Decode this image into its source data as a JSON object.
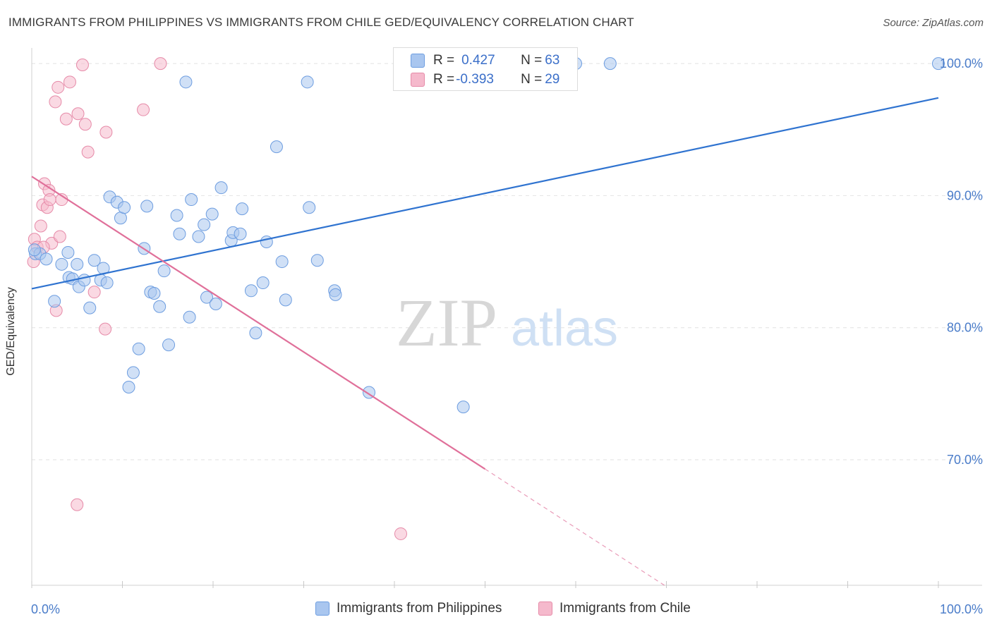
{
  "title": "IMMIGRANTS FROM PHILIPPINES VS IMMIGRANTS FROM CHILE GED/EQUIVALENCY CORRELATION CHART",
  "source": "Source: ZipAtlas.com",
  "watermark": {
    "zip": "ZIP",
    "atlas": "atlas"
  },
  "stats_box": {
    "rows": [
      {
        "r_label": "R = ",
        "r_value": "0.427",
        "n_label": "N = ",
        "n_value": "63",
        "color": "#a9c6ef"
      },
      {
        "r_label": "R = ",
        "r_value": "-0.393",
        "n_label": "N = ",
        "n_value": "29",
        "color": "#f5b9cc"
      }
    ]
  },
  "legend": [
    {
      "label": "Immigrants from Philippines",
      "color": "#a9c6ef"
    },
    {
      "label": "Immigrants from Chile",
      "color": "#f5b9cc"
    }
  ],
  "colors": {
    "philippines_fill": "#a9c6ef",
    "philippines_stroke": "#6d9de0",
    "philippines_line": "#2f73d0",
    "chile_fill": "#f5b9cc",
    "chile_stroke": "#e68aa8",
    "chile_line": "#e0709a",
    "axis_label": "#4a7cc9",
    "grid": "#e2e2e2"
  },
  "chart_data": {
    "type": "scatter",
    "title": "IMMIGRANTS FROM PHILIPPINES VS IMMIGRANTS FROM CHILE GED/EQUIVALENCY CORRELATION CHART",
    "xlabel": "",
    "ylabel": "GED/Equivalency",
    "xlim": [
      0,
      100
    ],
    "ylim": [
      60.5,
      101.5
    ],
    "x_tick_labels": [
      "0.0%",
      "100.0%"
    ],
    "y_ticks": [
      70,
      80,
      90,
      100
    ],
    "y_tick_labels": [
      "70.0%",
      "80.0%",
      "90.0%",
      "100.0%"
    ],
    "grid": true,
    "legend_position": "bottom",
    "series": [
      {
        "name": "Immigrants from Philippines",
        "trend": {
          "x": [
            0,
            100
          ],
          "y": [
            82.95,
            97.4
          ]
        },
        "points": [
          [
            0.4,
            85.6
          ],
          [
            0.9,
            85.6
          ],
          [
            1.6,
            85.2
          ],
          [
            4.0,
            85.7
          ],
          [
            2.5,
            82.0
          ],
          [
            3.3,
            84.8
          ],
          [
            4.1,
            83.8
          ],
          [
            4.5,
            83.7
          ],
          [
            5.0,
            84.8
          ],
          [
            5.2,
            83.1
          ],
          [
            5.8,
            83.6
          ],
          [
            6.4,
            81.5
          ],
          [
            6.9,
            85.1
          ],
          [
            7.6,
            83.6
          ],
          [
            7.9,
            84.5
          ],
          [
            8.3,
            83.4
          ],
          [
            8.6,
            89.9
          ],
          [
            9.4,
            89.5
          ],
          [
            9.8,
            88.3
          ],
          [
            10.2,
            89.1
          ],
          [
            10.7,
            75.5
          ],
          [
            11.2,
            76.6
          ],
          [
            11.8,
            78.4
          ],
          [
            12.4,
            86.0
          ],
          [
            12.7,
            89.2
          ],
          [
            13.1,
            82.7
          ],
          [
            13.5,
            82.6
          ],
          [
            14.1,
            81.6
          ],
          [
            14.6,
            84.3
          ],
          [
            15.1,
            78.7
          ],
          [
            16.0,
            88.5
          ],
          [
            16.3,
            87.1
          ],
          [
            17.0,
            98.6
          ],
          [
            17.4,
            80.8
          ],
          [
            17.6,
            89.7
          ],
          [
            18.4,
            86.9
          ],
          [
            19.0,
            87.8
          ],
          [
            19.3,
            82.3
          ],
          [
            19.9,
            88.6
          ],
          [
            20.3,
            81.8
          ],
          [
            20.9,
            90.6
          ],
          [
            22.0,
            86.6
          ],
          [
            22.2,
            87.2
          ],
          [
            23.0,
            87.1
          ],
          [
            23.2,
            89.0
          ],
          [
            24.2,
            82.8
          ],
          [
            24.7,
            79.6
          ],
          [
            25.5,
            83.4
          ],
          [
            25.9,
            86.5
          ],
          [
            27.0,
            93.7
          ],
          [
            27.6,
            85.0
          ],
          [
            28.0,
            82.1
          ],
          [
            30.4,
            98.6
          ],
          [
            30.6,
            89.1
          ],
          [
            31.5,
            85.1
          ],
          [
            33.4,
            82.8
          ],
          [
            33.5,
            82.5
          ],
          [
            37.2,
            75.1
          ],
          [
            47.6,
            74.0
          ],
          [
            60.0,
            100.0
          ],
          [
            63.8,
            100.0
          ],
          [
            100.0,
            100.0
          ],
          [
            0.3,
            85.9
          ]
        ]
      },
      {
        "name": "Immigrants from Chile",
        "trend": {
          "x": [
            0,
            50
          ],
          "y": [
            91.45,
            69.3
          ]
        },
        "trend_dashed": {
          "x": [
            50,
            70
          ],
          "y": [
            69.3,
            60.4
          ]
        },
        "points": [
          [
            0.2,
            85.0
          ],
          [
            0.3,
            86.7
          ],
          [
            0.6,
            86.1
          ],
          [
            1.0,
            87.7
          ],
          [
            1.2,
            89.3
          ],
          [
            1.4,
            90.9
          ],
          [
            1.7,
            89.1
          ],
          [
            1.9,
            90.4
          ],
          [
            2.0,
            89.7
          ],
          [
            2.2,
            86.4
          ],
          [
            2.6,
            97.1
          ],
          [
            2.7,
            81.3
          ],
          [
            2.9,
            98.2
          ],
          [
            3.1,
            86.9
          ],
          [
            3.3,
            89.7
          ],
          [
            3.8,
            95.8
          ],
          [
            4.2,
            98.6
          ],
          [
            5.0,
            66.6
          ],
          [
            5.1,
            96.2
          ],
          [
            5.6,
            99.9
          ],
          [
            5.9,
            95.4
          ],
          [
            6.2,
            93.3
          ],
          [
            6.9,
            82.7
          ],
          [
            8.1,
            79.9
          ],
          [
            8.2,
            94.8
          ],
          [
            12.3,
            96.5
          ],
          [
            14.2,
            100.0
          ],
          [
            40.7,
            64.4
          ],
          [
            1.3,
            86.1
          ]
        ]
      }
    ]
  }
}
